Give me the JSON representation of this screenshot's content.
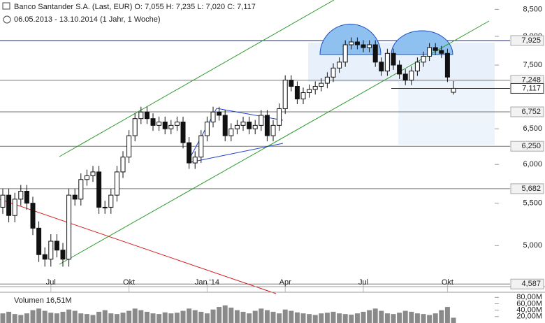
{
  "chart_data": [
    {
      "type": "candlestick",
      "title": "Banco Santander S.A. (Last, EUR)  O: 7,055  H: 7,235  L: 7,020  C: 7,117",
      "subtitle": "06.05.2013 - 13.10.2014 (1 Jahr, 1 Woche)",
      "log_scale": true,
      "categories": [
        null,
        null,
        null,
        null,
        null,
        null,
        null,
        null,
        "Jul",
        null,
        null,
        null,
        null,
        null,
        null,
        null,
        null,
        null,
        null,
        null,
        null,
        "Okt",
        null,
        null,
        null,
        null,
        null,
        null,
        null,
        null,
        null,
        null,
        null,
        null,
        "Jan '14",
        null,
        null,
        null,
        null,
        null,
        null,
        null,
        null,
        null,
        null,
        null,
        null,
        "Apr",
        null,
        null,
        null,
        null,
        null,
        null,
        null,
        null,
        null,
        null,
        null,
        null,
        "Jul",
        null,
        null,
        null,
        null,
        null,
        null,
        null,
        null,
        null,
        null,
        null,
        null,
        null,
        "Okt",
        null
      ],
      "open": [
        5.45,
        5.6,
        5.35,
        5.55,
        5.65,
        5.5,
        5.2,
        4.9,
        4.85,
        5.05,
        4.95,
        4.85,
        5.6,
        5.55,
        5.8,
        5.85,
        5.9,
        5.45,
        5.45,
        5.6,
        5.9,
        6.1,
        6.4,
        6.65,
        6.75,
        6.65,
        6.55,
        6.6,
        6.5,
        6.55,
        6.6,
        6.3,
        6.02,
        6.1,
        6.4,
        6.6,
        6.75,
        6.7,
        6.4,
        6.5,
        6.55,
        6.6,
        6.5,
        6.55,
        6.7,
        6.4,
        6.55,
        6.8,
        7.25,
        7.15,
        6.95,
        7.05,
        7.1,
        7.15,
        7.2,
        7.3,
        7.45,
        7.55,
        7.85,
        7.9,
        7.85,
        7.8,
        7.85,
        7.55,
        7.4,
        7.7,
        7.5,
        7.35,
        7.25,
        7.4,
        7.55,
        7.65,
        7.8,
        7.75,
        7.7,
        7.055
      ],
      "high": [
        5.68,
        5.68,
        5.63,
        5.73,
        5.73,
        5.58,
        5.28,
        4.98,
        5.13,
        5.13,
        5.03,
        5.68,
        5.68,
        5.88,
        5.93,
        5.98,
        5.98,
        5.53,
        5.68,
        5.98,
        6.18,
        6.48,
        6.73,
        6.83,
        6.83,
        6.73,
        6.68,
        6.68,
        6.63,
        6.68,
        6.68,
        6.38,
        6.18,
        6.48,
        6.68,
        6.83,
        6.83,
        6.78,
        6.58,
        6.63,
        6.68,
        6.68,
        6.63,
        6.78,
        6.78,
        6.63,
        6.88,
        7.33,
        7.33,
        7.23,
        7.13,
        7.18,
        7.23,
        7.28,
        7.38,
        7.53,
        7.63,
        7.93,
        7.98,
        7.98,
        7.93,
        7.93,
        7.93,
        7.63,
        7.78,
        7.78,
        7.58,
        7.43,
        7.48,
        7.63,
        7.73,
        7.88,
        7.88,
        7.83,
        7.78,
        7.235
      ],
      "low": [
        5.37,
        5.27,
        5.27,
        5.47,
        5.42,
        5.12,
        4.82,
        4.77,
        4.77,
        4.87,
        4.77,
        4.77,
        5.47,
        5.47,
        5.72,
        5.77,
        5.37,
        5.37,
        5.37,
        5.52,
        5.82,
        6.02,
        6.32,
        6.57,
        6.57,
        6.47,
        6.47,
        6.42,
        6.42,
        6.47,
        6.22,
        5.94,
        5.94,
        6.02,
        6.32,
        6.52,
        6.62,
        6.32,
        6.32,
        6.42,
        6.47,
        6.42,
        6.42,
        6.47,
        6.32,
        6.32,
        6.47,
        6.72,
        7.07,
        6.87,
        6.87,
        6.97,
        7.02,
        7.07,
        7.12,
        7.22,
        7.37,
        7.47,
        7.77,
        7.77,
        7.72,
        7.72,
        7.47,
        7.32,
        7.32,
        7.42,
        7.27,
        7.17,
        7.17,
        7.32,
        7.47,
        7.57,
        7.67,
        7.62,
        7.22,
        7.02
      ],
      "close": [
        5.6,
        5.35,
        5.55,
        5.65,
        5.5,
        5.2,
        4.9,
        4.85,
        5.05,
        4.95,
        4.85,
        5.6,
        5.55,
        5.8,
        5.85,
        5.9,
        5.45,
        5.45,
        5.6,
        5.9,
        6.1,
        6.4,
        6.65,
        6.75,
        6.65,
        6.55,
        6.6,
        6.5,
        6.55,
        6.6,
        6.3,
        6.02,
        6.1,
        6.4,
        6.6,
        6.75,
        6.7,
        6.4,
        6.5,
        6.55,
        6.6,
        6.5,
        6.55,
        6.7,
        6.4,
        6.55,
        6.8,
        7.25,
        7.15,
        6.95,
        7.05,
        7.1,
        7.15,
        7.2,
        7.3,
        7.45,
        7.55,
        7.85,
        7.9,
        7.85,
        7.8,
        7.85,
        7.55,
        7.4,
        7.7,
        7.5,
        7.35,
        7.25,
        7.4,
        7.55,
        7.65,
        7.8,
        7.75,
        7.7,
        7.3,
        7.117
      ],
      "ylim": [
        4.56,
        8.68
      ],
      "yticks": [
        {
          "value": 5.0,
          "label": "5,000"
        },
        {
          "value": 5.5,
          "label": "5,500"
        },
        {
          "value": 6.0,
          "label": "6,000"
        },
        {
          "value": 6.5,
          "label": "6,500"
        },
        {
          "value": 7.5,
          "label": "7,500"
        },
        {
          "value": 8.0,
          "label": "8,000"
        },
        {
          "value": 8.5,
          "label": "8,500"
        }
      ],
      "levels": [
        {
          "value": 7.925,
          "label": "7,925",
          "color": "#1a2a8c"
        },
        {
          "value": 7.248,
          "label": "7,248",
          "color": "#777"
        },
        {
          "value": 6.752,
          "label": "6,752",
          "color": "#777"
        },
        {
          "value": 6.25,
          "label": "6,250",
          "color": "#777"
        },
        {
          "value": 5.682,
          "label": "5,682",
          "color": "#777"
        },
        {
          "value": 4.587,
          "label": "4,587",
          "color": "#777"
        }
      ],
      "last": {
        "value": 7.117,
        "label": "7,117"
      }
    },
    {
      "type": "bar",
      "title": "Volumen 16,51M",
      "color": "#8a8a8a",
      "values": [
        30,
        35,
        28,
        25,
        30,
        40,
        45,
        38,
        32,
        30,
        35,
        42,
        38,
        30,
        28,
        25,
        35,
        40,
        30,
        28,
        32,
        38,
        45,
        40,
        35,
        30,
        28,
        33,
        30,
        32,
        38,
        45,
        40,
        35,
        30,
        42,
        50,
        55,
        48,
        40,
        35,
        30,
        38,
        45,
        40,
        35,
        30,
        42,
        38,
        33,
        30,
        28,
        25,
        30,
        32,
        35,
        30,
        28,
        26,
        30,
        35,
        40,
        45,
        38,
        30,
        28,
        32,
        38,
        35,
        30,
        28,
        25,
        30,
        40,
        50,
        16.51
      ],
      "ylim": [
        0,
        85
      ],
      "yticks": [
        {
          "value": 20,
          "label": "20,00M"
        },
        {
          "value": 40,
          "label": "40,00M"
        },
        {
          "value": 60,
          "label": "60,00M"
        },
        {
          "value": 80,
          "label": "80,00M"
        }
      ]
    }
  ]
}
